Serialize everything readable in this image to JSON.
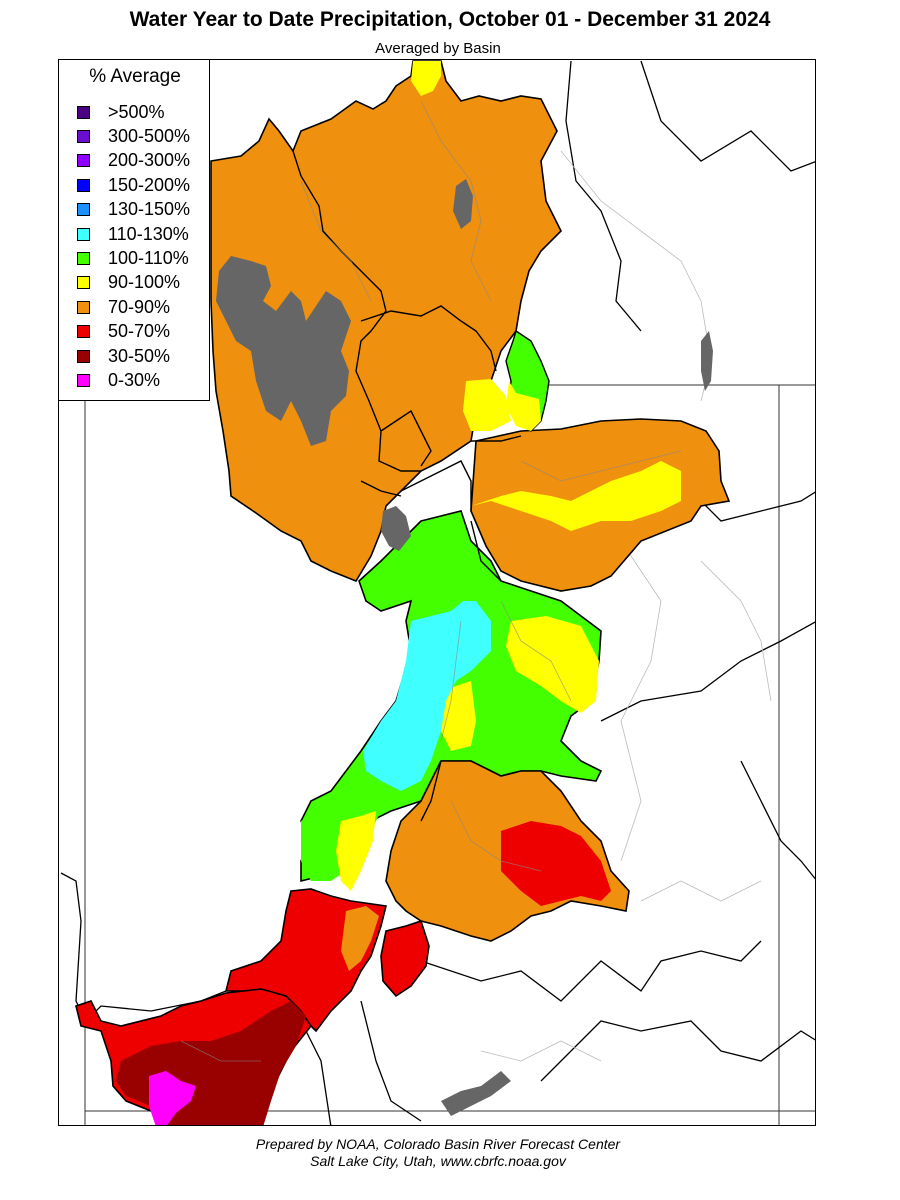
{
  "title": "Water Year to Date Precipitation, October 01  - December 31 2024",
  "subtitle": "Averaged by Basin",
  "legend": {
    "title": "% Average",
    "items": [
      {
        "label": ">500%",
        "color": "#4b0082"
      },
      {
        "label": "300-500%",
        "color": "#6a0dcc"
      },
      {
        "label": "200-300%",
        "color": "#8f00ff"
      },
      {
        "label": "150-200%",
        "color": "#0000ff"
      },
      {
        "label": "130-150%",
        "color": "#1e90ff"
      },
      {
        "label": "110-130%",
        "color": "#40ffff"
      },
      {
        "label": "100-110%",
        "color": "#44ff00"
      },
      {
        "label": "90-100%",
        "color": "#ffff00"
      },
      {
        "label": "70-90%",
        "color": "#f0900f"
      },
      {
        "label": "50-70%",
        "color": "#ee0000"
      },
      {
        "label": "30-50%",
        "color": "#990000"
      },
      {
        "label": "0-30%",
        "color": "#ff00ff"
      }
    ]
  },
  "map_colors": {
    "lake": "#666666",
    "background": "#ffffff",
    "river": "#aaaaaa",
    "boundary": "#000000"
  },
  "credit": {
    "line1": "Prepared by NOAA, Colorado Basin River Forecast Center",
    "line2": "Salt Lake City, Utah, www.cbrfc.noaa.gov"
  }
}
